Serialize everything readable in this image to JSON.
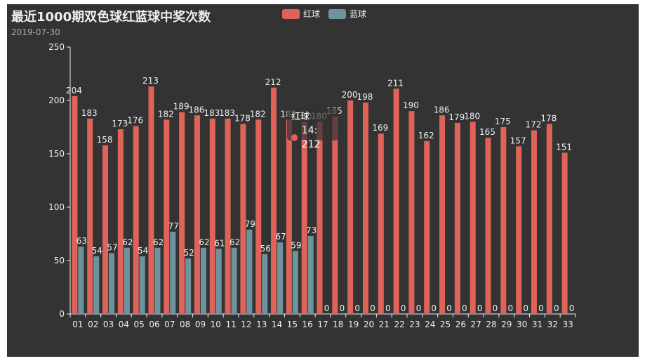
{
  "colors": {
    "red": "#e0635a",
    "blue": "#6d949c",
    "background": "#333333",
    "axis": "#eeeeee"
  },
  "chart_data": {
    "type": "bar",
    "title": "最近1000期双色球红蓝球中奖次数",
    "subtitle": "2019-07-30",
    "xlabel": "",
    "ylabel": "",
    "ylim": [
      0,
      250
    ],
    "yticks": [
      0,
      50,
      100,
      150,
      200,
      250
    ],
    "grid": false,
    "legend_position": "top-center",
    "categories": [
      "01",
      "02",
      "03",
      "04",
      "05",
      "06",
      "07",
      "08",
      "09",
      "10",
      "11",
      "12",
      "13",
      "14",
      "15",
      "16",
      "17",
      "18",
      "19",
      "20",
      "21",
      "22",
      "23",
      "24",
      "25",
      "26",
      "27",
      "28",
      "29",
      "30",
      "31",
      "32",
      "33"
    ],
    "series": [
      {
        "name": "红球",
        "color": "#e0635a",
        "values": [
          204,
          183,
          158,
          173,
          176,
          213,
          182,
          189,
          186,
          183,
          183,
          178,
          182,
          212,
          182,
          180,
          180,
          185,
          200,
          198,
          169,
          211,
          190,
          162,
          186,
          179,
          180,
          165,
          175,
          157,
          172,
          178,
          151
        ]
      },
      {
        "name": "蓝球",
        "color": "#6d949c",
        "values": [
          63,
          54,
          57,
          62,
          54,
          62,
          77,
          52,
          62,
          61,
          62,
          79,
          56,
          67,
          59,
          73,
          0,
          0,
          0,
          0,
          0,
          0,
          0,
          0,
          0,
          0,
          0,
          0,
          0,
          0,
          0,
          0,
          0
        ]
      }
    ]
  },
  "tooltip": {
    "series": "红球",
    "text": "14: 212"
  }
}
